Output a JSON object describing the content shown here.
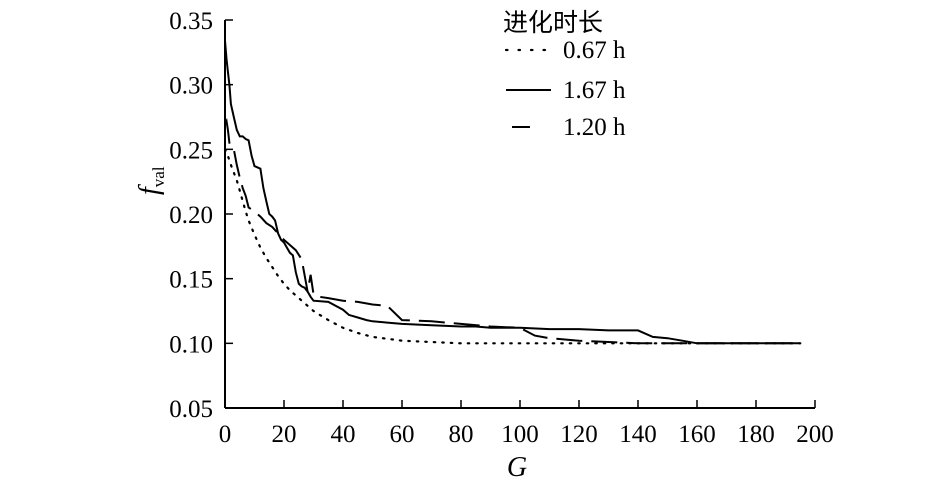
{
  "chart_data": {
    "type": "line",
    "xlabel": "G",
    "ylabel": "f",
    "ylabel_sub": "val",
    "xlim": [
      0,
      200
    ],
    "ylim": [
      0.05,
      0.35
    ],
    "xticks": [
      0,
      20,
      40,
      60,
      80,
      100,
      120,
      140,
      160,
      180,
      200
    ],
    "yticks": [
      "0.05",
      "0.10",
      "0.15",
      "0.20",
      "0.25",
      "0.30",
      "0.35"
    ],
    "grid": false,
    "legend": {
      "title": "进化时长",
      "position": "top-right"
    },
    "series": [
      {
        "name": "0.67 h",
        "style": "dotted",
        "x": [
          0,
          1,
          2,
          3,
          4,
          5,
          6,
          7,
          8,
          10,
          12,
          14,
          16,
          18,
          20,
          22,
          25,
          28,
          30,
          35,
          40,
          45,
          50,
          60,
          70,
          80,
          90,
          100,
          120,
          140,
          160,
          180,
          195
        ],
        "y": [
          0.25,
          0.245,
          0.238,
          0.232,
          0.226,
          0.218,
          0.21,
          0.202,
          0.195,
          0.184,
          0.174,
          0.166,
          0.159,
          0.152,
          0.146,
          0.141,
          0.135,
          0.129,
          0.125,
          0.118,
          0.112,
          0.108,
          0.105,
          0.102,
          0.101,
          0.1,
          0.1,
          0.1,
          0.1,
          0.1,
          0.1,
          0.1,
          0.1
        ]
      },
      {
        "name": "1.67 h",
        "style": "solid",
        "x": [
          0,
          0.5,
          1,
          1.5,
          2,
          3,
          4,
          5,
          6,
          7,
          8,
          9,
          10,
          12,
          13,
          14,
          15,
          16,
          17,
          18,
          19,
          20,
          21,
          22,
          23,
          24,
          25,
          26,
          27,
          28,
          29,
          30,
          35,
          40,
          42,
          45,
          48,
          50,
          55,
          60,
          70,
          80,
          85,
          90,
          100,
          110,
          120,
          130,
          140,
          145,
          150,
          155,
          160,
          170,
          180,
          190,
          195
        ],
        "y": [
          0.334,
          0.32,
          0.31,
          0.3,
          0.285,
          0.275,
          0.265,
          0.26,
          0.26,
          0.258,
          0.257,
          0.245,
          0.237,
          0.235,
          0.22,
          0.21,
          0.2,
          0.198,
          0.195,
          0.185,
          0.18,
          0.178,
          0.174,
          0.17,
          0.168,
          0.155,
          0.146,
          0.144,
          0.143,
          0.14,
          0.136,
          0.133,
          0.132,
          0.126,
          0.122,
          0.12,
          0.118,
          0.117,
          0.116,
          0.115,
          0.114,
          0.113,
          0.113,
          0.112,
          0.112,
          0.111,
          0.111,
          0.11,
          0.11,
          0.105,
          0.104,
          0.102,
          0.1,
          0.1,
          0.1,
          0.1,
          0.1
        ]
      },
      {
        "name": "1.20 h",
        "style": "dashed",
        "x": [
          0,
          0.5,
          1,
          1.5,
          2,
          3,
          4,
          5,
          6,
          7,
          8,
          10,
          12,
          14,
          16,
          18,
          20,
          22,
          24,
          26,
          28,
          29,
          30,
          32,
          35,
          40,
          45,
          50,
          55,
          60,
          70,
          80,
          90,
          100,
          105,
          110,
          120,
          130,
          140,
          150,
          160,
          170,
          180,
          190,
          195
        ],
        "y": [
          0.27,
          0.272,
          0.265,
          0.255,
          0.252,
          0.25,
          0.238,
          0.228,
          0.22,
          0.214,
          0.205,
          0.202,
          0.198,
          0.193,
          0.19,
          0.185,
          0.18,
          0.176,
          0.172,
          0.165,
          0.14,
          0.153,
          0.138,
          0.136,
          0.135,
          0.133,
          0.132,
          0.13,
          0.129,
          0.118,
          0.117,
          0.115,
          0.113,
          0.112,
          0.106,
          0.104,
          0.102,
          0.101,
          0.1,
          0.1,
          0.1,
          0.1,
          0.1,
          0.1,
          0.1
        ]
      }
    ]
  }
}
